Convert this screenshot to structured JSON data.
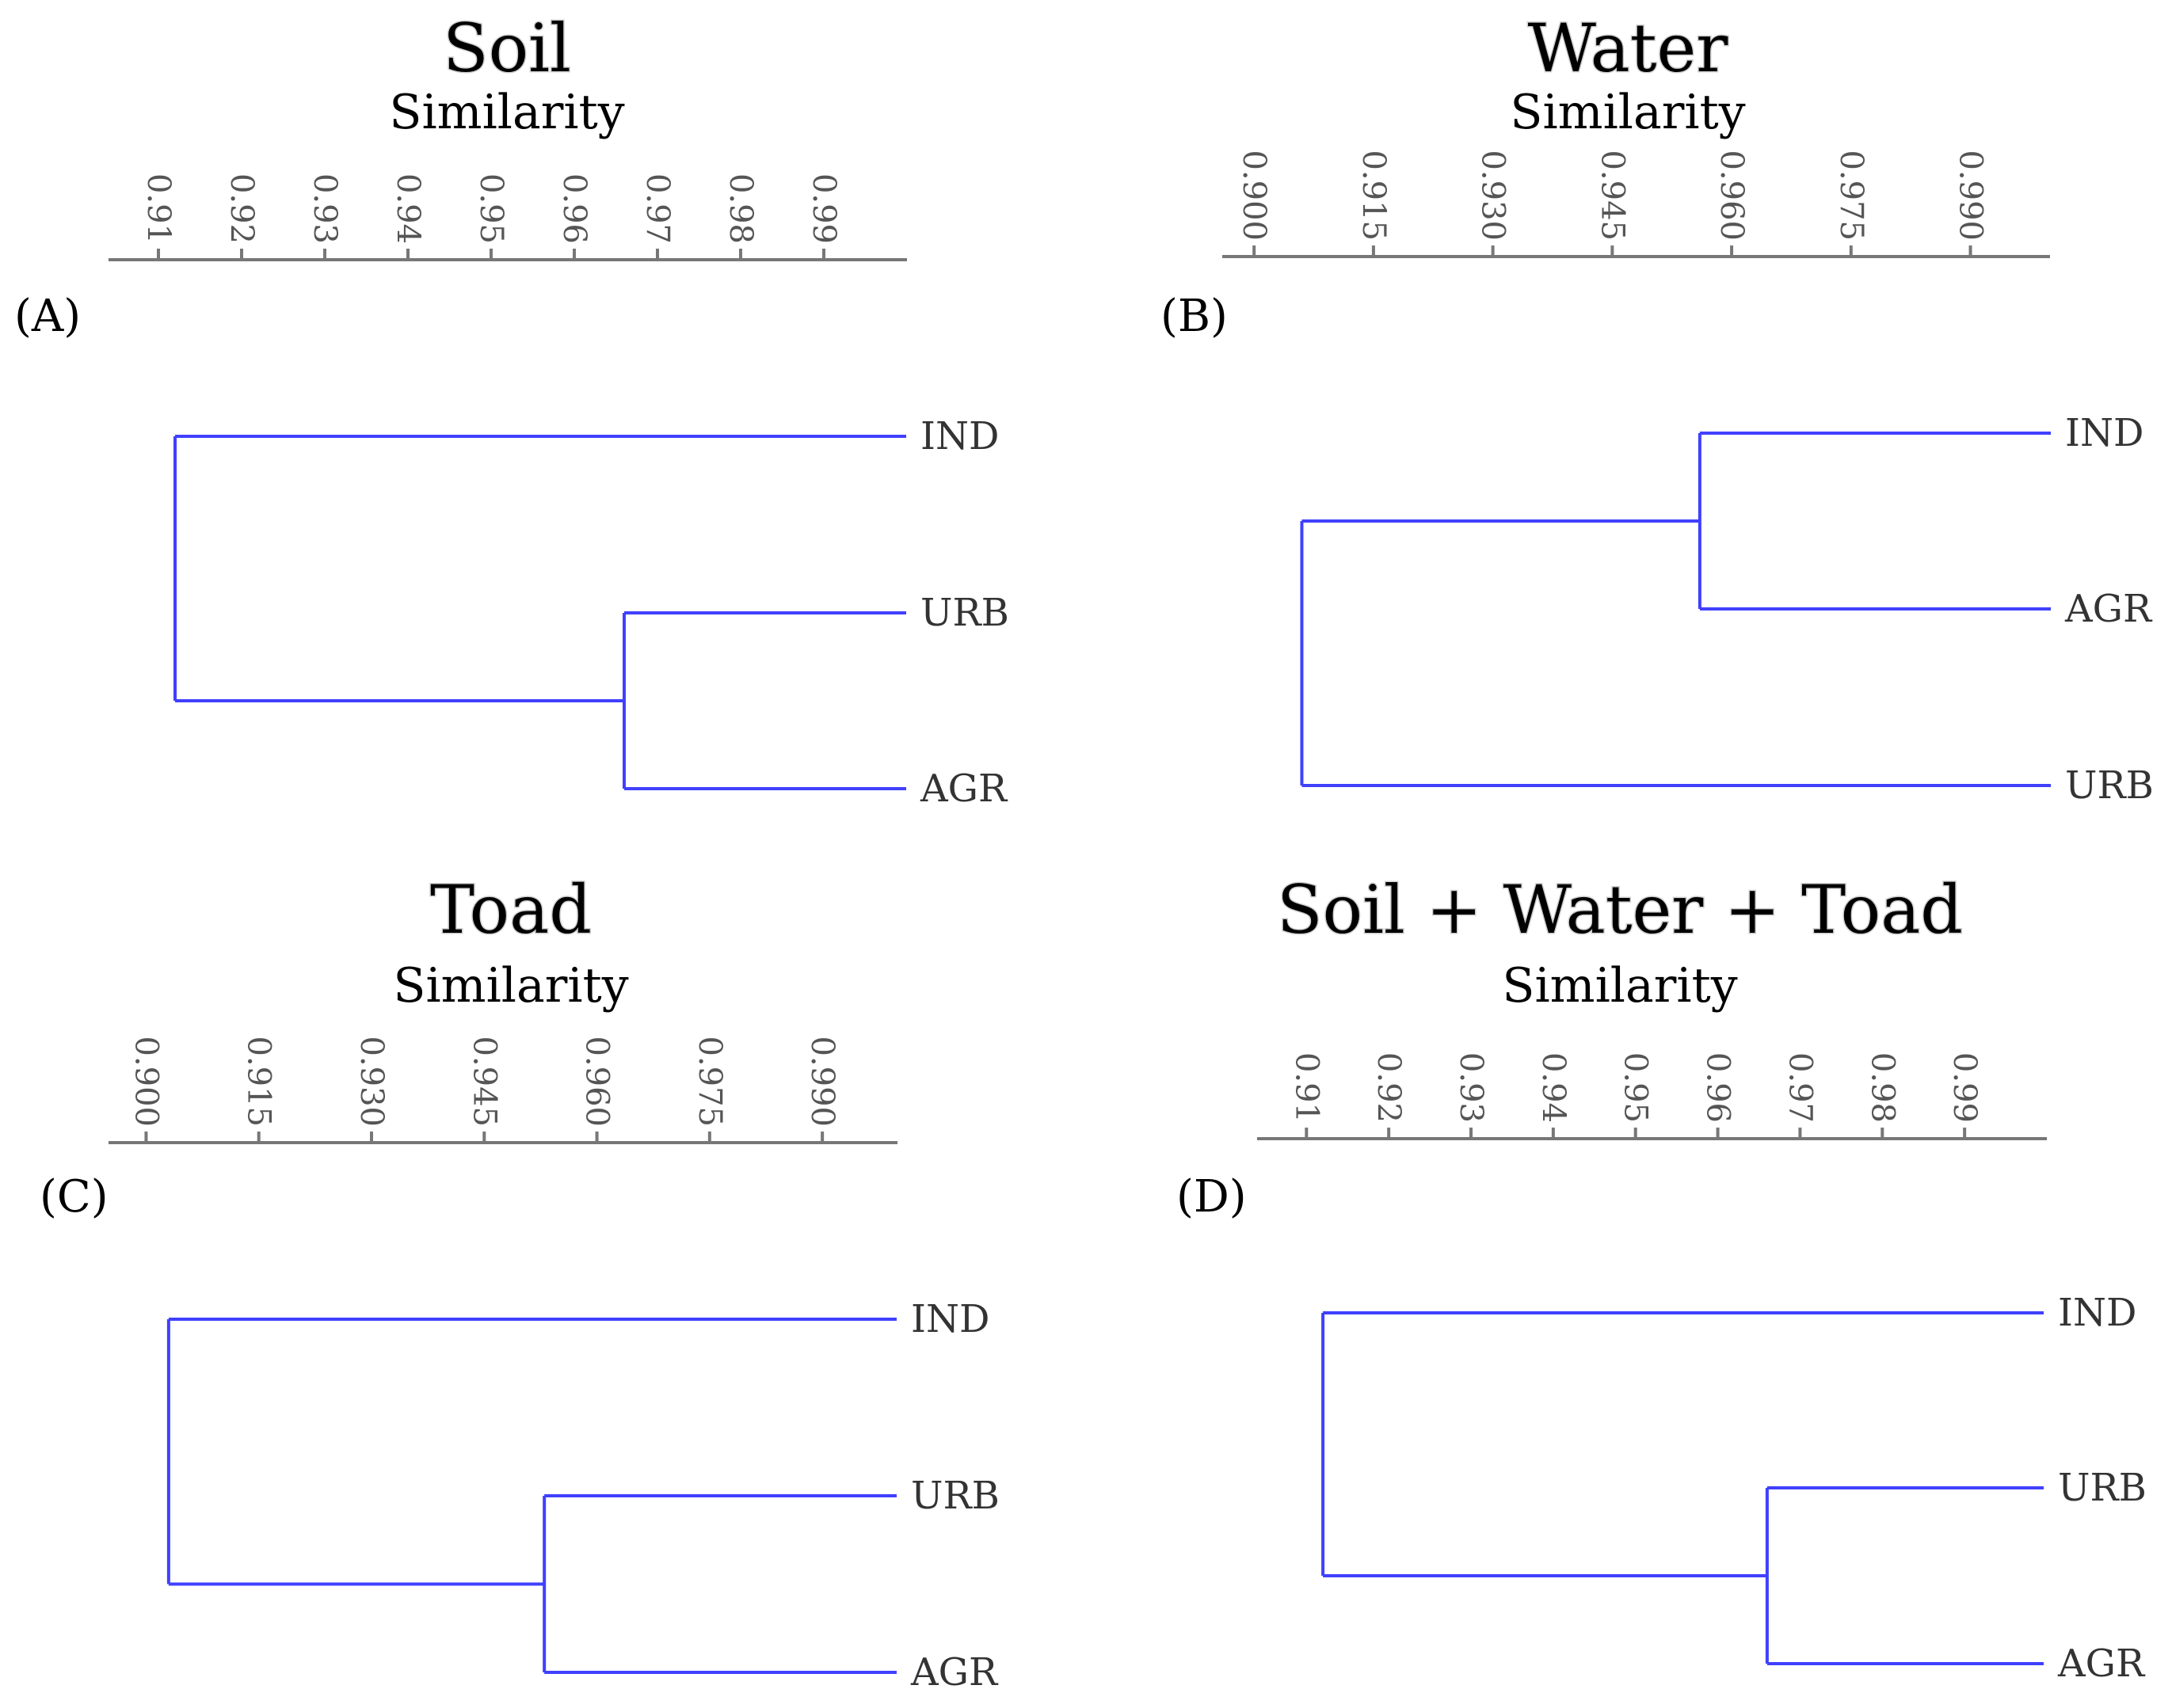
{
  "chart_data": [
    {
      "type": "dendrogram",
      "panel_label": "(A)",
      "title": "Soil",
      "xlabel": "Similarity",
      "ticks": [
        0.91,
        0.92,
        0.93,
        0.94,
        0.95,
        0.96,
        0.97,
        0.98,
        0.99
      ],
      "tick_labels": [
        "0.91",
        "0.92",
        "0.93",
        "0.94",
        "0.95",
        "0.96",
        "0.97",
        "0.98",
        "0.99"
      ],
      "xlim": [
        0.904,
        1.0
      ],
      "leaves": [
        "IND",
        "URB",
        "AGR"
      ],
      "merges": [
        {
          "members": [
            "URB",
            "AGR"
          ],
          "similarity": 0.966
        },
        {
          "members": [
            "IND",
            "URB+AGR"
          ],
          "similarity": 0.912
        }
      ]
    },
    {
      "type": "dendrogram",
      "panel_label": "(B)",
      "title": "Water",
      "xlabel": "Similarity",
      "ticks": [
        0.9,
        0.915,
        0.93,
        0.945,
        0.96,
        0.975,
        0.99
      ],
      "tick_labels": [
        "0.900",
        "0.915",
        "0.930",
        "0.945",
        "0.960",
        "0.975",
        "0.990"
      ],
      "xlim": [
        0.896,
        1.0
      ],
      "leaves": [
        "IND",
        "AGR",
        "URB"
      ],
      "merges": [
        {
          "members": [
            "IND",
            "AGR"
          ],
          "similarity": 0.956
        },
        {
          "members": [
            "IND+AGR",
            "URB"
          ],
          "similarity": 0.906
        }
      ]
    },
    {
      "type": "dendrogram",
      "panel_label": "(C)",
      "title": "Toad",
      "xlabel": "Similarity",
      "ticks": [
        0.9,
        0.915,
        0.93,
        0.945,
        0.96,
        0.975,
        0.99
      ],
      "tick_labels": [
        "0.900",
        "0.915",
        "0.930",
        "0.945",
        "0.960",
        "0.975",
        "0.990"
      ],
      "xlim": [
        0.895,
        1.0
      ],
      "leaves": [
        "IND",
        "URB",
        "AGR"
      ],
      "merges": [
        {
          "members": [
            "URB",
            "AGR"
          ],
          "similarity": 0.953
        },
        {
          "members": [
            "IND",
            "URB+AGR"
          ],
          "similarity": 0.903
        }
      ]
    },
    {
      "type": "dendrogram",
      "panel_label": "(D)",
      "title": "Soil + Water + Toad",
      "xlabel": "Similarity",
      "ticks": [
        0.91,
        0.92,
        0.93,
        0.94,
        0.95,
        0.96,
        0.97,
        0.98,
        0.99
      ],
      "tick_labels": [
        "0.91",
        "0.92",
        "0.93",
        "0.94",
        "0.95",
        "0.96",
        "0.97",
        "0.98",
        "0.99"
      ],
      "xlim": [
        0.904,
        1.0
      ],
      "leaves": [
        "IND",
        "URB",
        "AGR"
      ],
      "merges": [
        {
          "members": [
            "URB",
            "AGR"
          ],
          "similarity": 0.966
        },
        {
          "members": [
            "IND",
            "URB+AGR"
          ],
          "similarity": 0.912
        }
      ]
    }
  ]
}
